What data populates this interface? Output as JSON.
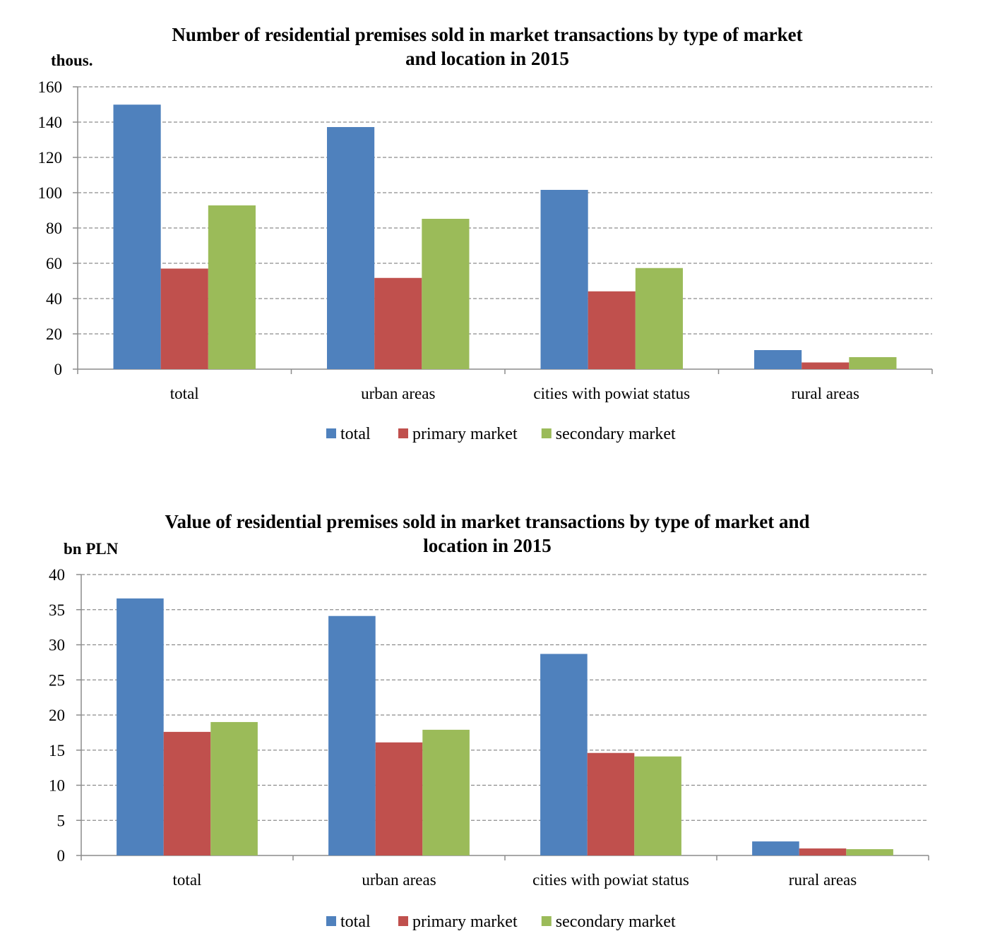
{
  "chart_data": [
    {
      "type": "bar",
      "title_lines": [
        "Number of residential premises sold in market transactions by type of market",
        "and location in 2015"
      ],
      "ylabel": "thous.",
      "ylim": [
        0,
        160
      ],
      "yticks": [
        0,
        20,
        40,
        60,
        80,
        100,
        120,
        140,
        160
      ],
      "categories": [
        "total",
        "urban areas",
        "cities with powiat status",
        "rural areas"
      ],
      "series": [
        {
          "name": "total",
          "color": "#4f81bd",
          "values": [
            149.9,
            137.2,
            101.6,
            10.8
          ]
        },
        {
          "name": "primary market",
          "color": "#c0504d",
          "values": [
            57.0,
            51.7,
            44.1,
            3.8
          ]
        },
        {
          "name": "secondary market",
          "color": "#9bbb59",
          "values": [
            92.8,
            85.2,
            57.3,
            6.8
          ]
        }
      ],
      "grid": true,
      "legend": "bottom"
    },
    {
      "type": "bar",
      "title_lines": [
        "Value of residential premises sold in market transactions by type of market and",
        "location in 2015"
      ],
      "ylabel": "bn PLN",
      "ylim": [
        0,
        40
      ],
      "yticks": [
        0,
        5,
        10,
        15,
        20,
        25,
        30,
        35,
        40
      ],
      "categories": [
        "total",
        "urban areas",
        "cities with powiat status",
        "rural areas"
      ],
      "series": [
        {
          "name": "total",
          "color": "#4f81bd",
          "values": [
            36.6,
            34.1,
            28.7,
            2.0
          ]
        },
        {
          "name": "primary market",
          "color": "#c0504d",
          "values": [
            17.6,
            16.1,
            14.6,
            1.0
          ]
        },
        {
          "name": "secondary market",
          "color": "#9bbb59",
          "values": [
            19.0,
            17.9,
            14.1,
            0.9
          ]
        }
      ],
      "grid": true,
      "legend": "bottom"
    }
  ]
}
